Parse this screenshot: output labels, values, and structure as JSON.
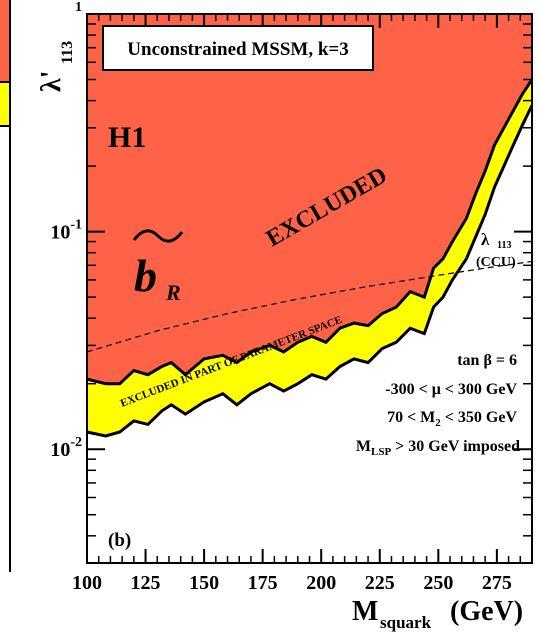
{
  "chart_data": {
    "type": "area",
    "panel_label": "(b)",
    "title_box": "Unconstrained MSSM, k=3",
    "xlabel": {
      "main": "M",
      "sub": "squark",
      "unit": "(GeV)"
    },
    "ylabel": {
      "main": "λ'",
      "sub": "113"
    },
    "x_ticks": [
      "100",
      "125",
      "150",
      "175",
      "200",
      "225",
      "250",
      "275"
    ],
    "x_tick_values": [
      100,
      125,
      150,
      175,
      200,
      225,
      250,
      275
    ],
    "xlim": [
      100,
      290
    ],
    "ylim": [
      0.003,
      1
    ],
    "y_scale": "log",
    "y_ticks": [
      {
        "value": 1,
        "base": "",
        "exp": "1"
      },
      {
        "value": 0.1,
        "base": "10",
        "exp": "-1"
      },
      {
        "value": 0.01,
        "base": "10",
        "exp": "-2"
      }
    ],
    "regions": [
      {
        "name": "excluded",
        "color": "#ff6347"
      },
      {
        "name": "excluded_partial",
        "color": "#ffff00"
      },
      {
        "name": "allowed",
        "color": "#ffffff"
      }
    ],
    "series": [
      {
        "name": "EXCLUDED",
        "x": [
          100,
          108,
          114,
          120,
          126,
          132,
          136,
          142,
          150,
          158,
          164,
          170,
          178,
          184,
          190,
          196,
          202,
          208,
          214,
          220,
          226,
          232,
          238,
          244,
          248,
          252,
          256,
          262,
          266,
          270,
          274,
          278,
          282,
          286,
          290
        ],
        "y": [
          0.021,
          0.02,
          0.02,
          0.023,
          0.022,
          0.024,
          0.025,
          0.022,
          0.026,
          0.027,
          0.025,
          0.028,
          0.03,
          0.028,
          0.031,
          0.033,
          0.031,
          0.036,
          0.038,
          0.037,
          0.042,
          0.045,
          0.053,
          0.05,
          0.068,
          0.075,
          0.09,
          0.115,
          0.15,
          0.19,
          0.25,
          0.3,
          0.36,
          0.43,
          0.5
        ]
      },
      {
        "name": "EXCLUDED IN PART OF PARAMETER SPACE",
        "x": [
          100,
          108,
          114,
          120,
          126,
          132,
          136,
          142,
          150,
          158,
          164,
          170,
          178,
          184,
          190,
          196,
          202,
          208,
          214,
          220,
          226,
          232,
          238,
          244,
          248,
          252,
          256,
          262,
          266,
          270,
          274,
          278,
          282,
          286,
          290
        ],
        "y": [
          0.012,
          0.0115,
          0.012,
          0.0135,
          0.013,
          0.015,
          0.016,
          0.0145,
          0.0165,
          0.018,
          0.016,
          0.018,
          0.02,
          0.0185,
          0.02,
          0.022,
          0.021,
          0.024,
          0.026,
          0.025,
          0.029,
          0.031,
          0.036,
          0.034,
          0.045,
          0.05,
          0.06,
          0.075,
          0.095,
          0.12,
          0.16,
          0.2,
          0.25,
          0.31,
          0.38
        ]
      },
      {
        "name": "λ' 113 (CCU)",
        "style": "dashed",
        "x": [
          100,
          130,
          160,
          190,
          220,
          250,
          270,
          290
        ],
        "y": [
          0.028,
          0.035,
          0.042,
          0.049,
          0.056,
          0.063,
          0.068,
          0.073
        ]
      }
    ],
    "annotations": {
      "h1": "H1",
      "excluded": "EXCLUDED",
      "partial": "EXCLUDED IN PART OF PARAMETER SPACE",
      "sbottom_letter": "b",
      "sbottom_sub": "R",
      "ccu_main": "λ",
      "ccu_sub": "113",
      "ccu_label": "(CCU)",
      "params": [
        {
          "pre": "tan ",
          "greek": "β",
          "post": " = 6"
        },
        {
          "pre": "-300 < ",
          "greek": "μ",
          "post": " < 300 GeV"
        },
        {
          "pre": "70 < M",
          "sub": "2",
          "post": " < 350 GeV"
        },
        {
          "pre": "M",
          "sub": "LSP",
          "post": " > 30 GeV imposed"
        }
      ]
    },
    "left_sliver_colors": [
      "#ff6347",
      "#ffff00"
    ]
  }
}
